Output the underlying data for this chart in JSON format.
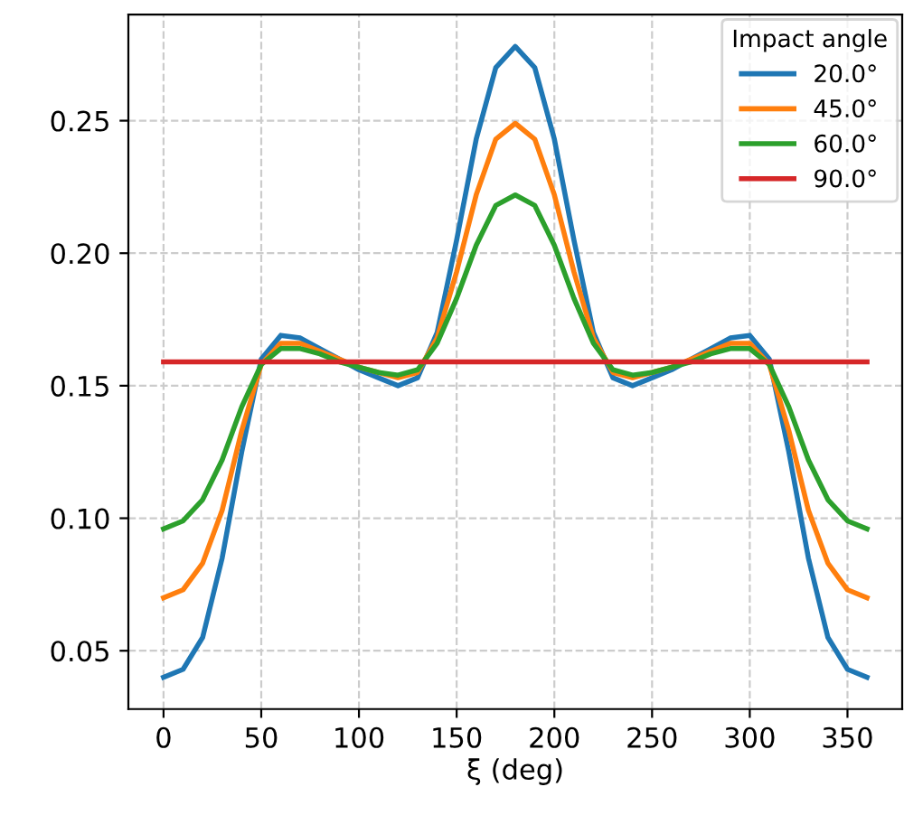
{
  "chart_data": {
    "type": "line",
    "xlabel": "ξ (deg)",
    "legend_title": "Impact angle",
    "legend": "top right",
    "grid": true,
    "line_style": "solid",
    "x": [
      0,
      10,
      20,
      30,
      40,
      50,
      60,
      70,
      80,
      90,
      100,
      110,
      120,
      130,
      140,
      150,
      160,
      170,
      180,
      190,
      200,
      210,
      220,
      230,
      240,
      250,
      260,
      270,
      280,
      290,
      300,
      310,
      320,
      330,
      340,
      350,
      360
    ],
    "series": [
      {
        "name": "20.0°",
        "color": "#1f77b4",
        "values": [
          0.04,
          0.043,
          0.055,
          0.085,
          0.125,
          0.16,
          0.169,
          0.168,
          0.164,
          0.16,
          0.156,
          0.153,
          0.15,
          0.153,
          0.17,
          0.205,
          0.243,
          0.27,
          0.278,
          0.27,
          0.243,
          0.205,
          0.17,
          0.153,
          0.15,
          0.153,
          0.156,
          0.16,
          0.164,
          0.168,
          0.169,
          0.16,
          0.125,
          0.085,
          0.055,
          0.043,
          0.04
        ]
      },
      {
        "name": "45.0°",
        "color": "#ff7f0e",
        "values": [
          0.07,
          0.073,
          0.083,
          0.103,
          0.133,
          0.158,
          0.166,
          0.166,
          0.163,
          0.16,
          0.157,
          0.155,
          0.153,
          0.155,
          0.168,
          0.193,
          0.222,
          0.243,
          0.249,
          0.243,
          0.222,
          0.193,
          0.168,
          0.155,
          0.153,
          0.155,
          0.157,
          0.16,
          0.163,
          0.166,
          0.166,
          0.158,
          0.133,
          0.103,
          0.083,
          0.073,
          0.07
        ]
      },
      {
        "name": "60.0°",
        "color": "#2ca02c",
        "values": [
          0.096,
          0.099,
          0.107,
          0.122,
          0.142,
          0.158,
          0.164,
          0.164,
          0.162,
          0.159,
          0.157,
          0.155,
          0.154,
          0.156,
          0.166,
          0.183,
          0.203,
          0.218,
          0.222,
          0.218,
          0.203,
          0.183,
          0.166,
          0.156,
          0.154,
          0.155,
          0.157,
          0.159,
          0.162,
          0.164,
          0.164,
          0.158,
          0.142,
          0.122,
          0.107,
          0.099,
          0.096
        ]
      },
      {
        "name": "90.0°",
        "color": "#d62728",
        "values": [
          0.159,
          0.159,
          0.159,
          0.159,
          0.159,
          0.159,
          0.159,
          0.159,
          0.159,
          0.159,
          0.159,
          0.159,
          0.159,
          0.159,
          0.159,
          0.159,
          0.159,
          0.159,
          0.159,
          0.159,
          0.159,
          0.159,
          0.159,
          0.159,
          0.159,
          0.159,
          0.159,
          0.159,
          0.159,
          0.159,
          0.159,
          0.159,
          0.159,
          0.159,
          0.159,
          0.159,
          0.159
        ]
      }
    ],
    "xlim": [
      -18,
      378
    ],
    "ylim": [
      0.028,
      0.29
    ],
    "xticks": [
      0,
      50,
      100,
      150,
      200,
      250,
      300,
      350
    ],
    "yticks": [
      0.05,
      {
        "value": 0.1,
        "label": "0.10"
      },
      0.15,
      {
        "value": 0.2,
        "label": "0.20"
      },
      0.25
    ]
  }
}
